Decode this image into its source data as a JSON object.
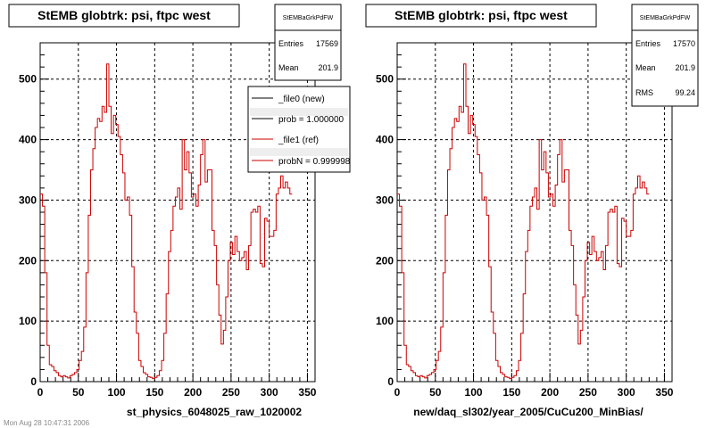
{
  "footer_text": "Mon Aug 28 10:47:31 2006",
  "chart_data": [
    {
      "type": "line",
      "title": "StEMB globtrk: psi, ftpc west",
      "xlabel": "st_physics_6048025_raw_1020002",
      "ylabel": "",
      "xlim": [
        0,
        360
      ],
      "ylim": [
        0,
        560
      ],
      "x_ticks": [
        0,
        50,
        100,
        150,
        200,
        250,
        300,
        350
      ],
      "y_ticks": [
        0,
        100,
        200,
        300,
        400,
        500
      ],
      "grid": true,
      "colors": {
        "new": "#000000",
        "ref": "#cc0000"
      },
      "stats": {
        "name": "StEMBaGrkPdFW",
        "rows": [
          {
            "label": "Entries",
            "value": "17569"
          },
          {
            "label": "Mean",
            "value": "201.9"
          }
        ]
      },
      "legend": [
        {
          "label": "_file0 (new)",
          "color": "#000000"
        },
        {
          "label": "prob = 1.000000",
          "color": "#000000"
        },
        {
          "label": "_file1 (ref)",
          "color": "#cc0000"
        },
        {
          "label": "probN = 0.999998",
          "color": "#cc0000"
        }
      ],
      "series": [
        {
          "name": "_file1 (ref)",
          "bin_width": 3,
          "values": [
            310,
            290,
            180,
            60,
            28,
            25,
            18,
            15,
            10,
            8,
            10,
            8,
            6,
            10,
            12,
            15,
            20,
            35,
            50,
            90,
            180,
            275,
            350,
            385,
            420,
            435,
            430,
            455,
            445,
            525,
            455,
            410,
            440,
            425,
            405,
            375,
            345,
            300,
            305,
            275,
            190,
            115,
            80,
            35,
            25,
            15,
            12,
            8,
            7,
            5,
            7,
            10,
            18,
            35,
            80,
            145,
            215,
            250,
            290,
            305,
            320,
            285,
            400,
            350,
            380,
            345,
            305,
            310,
            290,
            325,
            375,
            400,
            330,
            350,
            350,
            250,
            225,
            160,
            110,
            62,
            85,
            140,
            200,
            230,
            210,
            240,
            215,
            200,
            205,
            215,
            185,
            225,
            280,
            285,
            280,
            290,
            195,
            190,
            270,
            265,
            240,
            240,
            250,
            310,
            320,
            340,
            320,
            330,
            320,
            310
          ]
        }
      ]
    },
    {
      "type": "line",
      "title": "StEMB globtrk: psi, ftpc west",
      "xlabel": "new/daq_sl302/year_2005/CuCu200_MinBias/",
      "ylabel": "",
      "xlim": [
        0,
        360
      ],
      "ylim": [
        0,
        560
      ],
      "x_ticks": [
        0,
        50,
        100,
        150,
        200,
        250,
        300,
        350
      ],
      "y_ticks": [
        0,
        100,
        200,
        300,
        400,
        500
      ],
      "grid": true,
      "colors": {
        "ref": "#cc0000"
      },
      "stats": {
        "name": "StEMBaGrkPdFW",
        "rows": [
          {
            "label": "Entries",
            "value": "17570"
          },
          {
            "label": "Mean",
            "value": "201.9"
          },
          {
            "label": "RMS",
            "value": "99.24"
          }
        ]
      },
      "legend": [],
      "series": [
        {
          "name": "",
          "bin_width": 3,
          "values": [
            310,
            290,
            180,
            60,
            28,
            25,
            18,
            15,
            10,
            8,
            10,
            8,
            6,
            10,
            12,
            15,
            20,
            35,
            50,
            90,
            180,
            275,
            350,
            385,
            420,
            435,
            430,
            455,
            445,
            525,
            455,
            410,
            440,
            425,
            405,
            375,
            345,
            300,
            305,
            275,
            190,
            115,
            80,
            35,
            25,
            15,
            12,
            8,
            7,
            5,
            7,
            10,
            18,
            35,
            80,
            145,
            215,
            250,
            290,
            305,
            320,
            285,
            400,
            350,
            380,
            345,
            305,
            310,
            290,
            325,
            375,
            400,
            330,
            350,
            350,
            250,
            225,
            160,
            110,
            62,
            85,
            140,
            200,
            230,
            210,
            240,
            215,
            200,
            205,
            215,
            185,
            225,
            280,
            285,
            280,
            290,
            195,
            190,
            270,
            265,
            240,
            240,
            250,
            310,
            320,
            340,
            320,
            330,
            320,
            310
          ]
        }
      ]
    }
  ]
}
